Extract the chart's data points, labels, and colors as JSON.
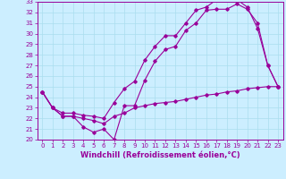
{
  "xlabel": "Windchill (Refroidissement éolien,°C)",
  "xlim": [
    -0.5,
    23.5
  ],
  "ylim": [
    20,
    33
  ],
  "xticks": [
    0,
    1,
    2,
    3,
    4,
    5,
    6,
    7,
    8,
    9,
    10,
    11,
    12,
    13,
    14,
    15,
    16,
    17,
    18,
    19,
    20,
    21,
    22,
    23
  ],
  "yticks": [
    20,
    21,
    22,
    23,
    24,
    25,
    26,
    27,
    28,
    29,
    30,
    31,
    32,
    33
  ],
  "line_color": "#990099",
  "bg_color": "#cceeff",
  "grid_color": "#aaddee",
  "tick_fontsize": 5.0,
  "xlabel_fontsize": 6.0,
  "curves": [
    {
      "x": [
        0,
        1,
        2,
        3,
        4,
        5,
        6,
        7,
        8,
        9,
        10,
        11,
        12,
        13,
        14,
        15,
        16,
        17,
        18,
        19,
        20,
        21,
        22,
        23
      ],
      "y": [
        24.5,
        23.0,
        22.2,
        22.2,
        21.2,
        20.7,
        21.0,
        20.0,
        23.2,
        23.2,
        25.6,
        27.4,
        28.5,
        28.8,
        30.3,
        31.0,
        32.2,
        32.3,
        32.3,
        32.8,
        32.3,
        31.0,
        27.0,
        25.0
      ]
    },
    {
      "x": [
        0,
        1,
        2,
        3,
        4,
        5,
        6,
        7,
        8,
        9,
        10,
        11,
        12,
        13,
        14,
        15,
        16,
        17,
        18,
        19,
        20,
        21,
        22,
        23
      ],
      "y": [
        24.5,
        23.0,
        22.5,
        22.5,
        22.3,
        22.2,
        22.0,
        23.5,
        24.8,
        25.5,
        27.5,
        28.8,
        29.8,
        29.8,
        31.0,
        32.2,
        32.5,
        33.2,
        33.5,
        33.2,
        32.5,
        30.5,
        27.0,
        25.0
      ]
    },
    {
      "x": [
        0,
        1,
        2,
        3,
        4,
        5,
        6,
        7,
        8,
        9,
        10,
        11,
        12,
        13,
        14,
        15,
        16,
        17,
        18,
        19,
        20,
        21,
        22,
        23
      ],
      "y": [
        24.5,
        23.0,
        22.2,
        22.2,
        22.0,
        21.8,
        21.5,
        22.2,
        22.5,
        23.0,
        23.2,
        23.4,
        23.5,
        23.6,
        23.8,
        24.0,
        24.2,
        24.3,
        24.5,
        24.6,
        24.8,
        24.9,
        25.0,
        25.0
      ]
    }
  ]
}
